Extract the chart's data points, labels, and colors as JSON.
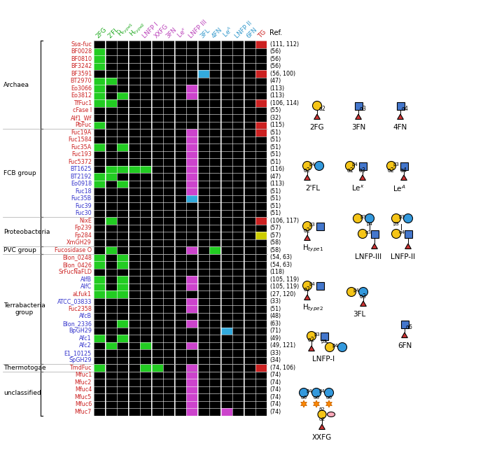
{
  "col_display": [
    "2FG",
    "2'FL",
    "H$_{type1}$",
    "H$_{type2}$",
    "LNFP I",
    "XXFG",
    "3FN",
    "Le$^x$",
    "LNFP III",
    "3FL",
    "4FN",
    "Le$^A$",
    "LNFP II",
    "6FN",
    "TG"
  ],
  "col_text_colors": [
    "#22aa22",
    "#22aa22",
    "#22aa22",
    "#22aa22",
    "#bb44bb",
    "#bb44bb",
    "#bb44bb",
    "#bb44bb",
    "#bb44bb",
    "#3399cc",
    "#3399cc",
    "#3399cc",
    "#3399cc",
    "#3399cc",
    "#cc2222"
  ],
  "row_labels": [
    "Ssα-fuc",
    "BF0028",
    "BF0810",
    "BF3242",
    "BF3591",
    "BT2970",
    "Eo3066",
    "Eo3812",
    "TfFuc1",
    "cFase I",
    "Alf1_Wf",
    "PbFuc",
    "Fuc19A",
    "Fuc1584",
    "Fuc35A",
    "Fuc193",
    "Fuc5372",
    "BT1625",
    "BT2192",
    "Eo0918",
    "Fuc18",
    "Fuc35B",
    "Fuc39",
    "Fuc30",
    "NixE",
    "Fp239",
    "Fp284",
    "XmGH29",
    "Fucosidase O",
    "Blon_0248",
    "Blon_0426",
    "SrFucNaFLD",
    "AlfB",
    "AlfC",
    "aLfuk1",
    "ATCC_03833",
    "Fuc2358",
    "AfcB",
    "Blon_2336",
    "BpGH29",
    "Afc1",
    "Afc2",
    "E1_10125",
    "SpGH29",
    "TmdFuc",
    "Mfuc1",
    "Mfuc2",
    "Mfuc4",
    "Mfuc5",
    "Mfuc6",
    "Mfuc7"
  ],
  "row_colors": [
    "#cc2222",
    "#cc2222",
    "#cc2222",
    "#cc2222",
    "#cc2222",
    "#cc2222",
    "#cc2222",
    "#cc2222",
    "#cc2222",
    "#cc2222",
    "#cc2222",
    "#cc2222",
    "#cc2222",
    "#cc2222",
    "#cc2222",
    "#cc2222",
    "#cc2222",
    "#3333cc",
    "#3333cc",
    "#3333cc",
    "#3333cc",
    "#3333cc",
    "#3333cc",
    "#3333cc",
    "#cc2222",
    "#cc2222",
    "#cc2222",
    "#cc2222",
    "#cc2222",
    "#cc2222",
    "#cc2222",
    "#cc2222",
    "#3333cc",
    "#3333cc",
    "#cc2222",
    "#3333cc",
    "#cc2222",
    "#3333cc",
    "#3333cc",
    "#3333cc",
    "#3333cc",
    "#3333cc",
    "#3333cc",
    "#3333cc",
    "#cc2222",
    "#cc2222",
    "#cc2222",
    "#cc2222",
    "#cc2222",
    "#cc2222",
    "#cc2222"
  ],
  "refs": [
    "(111, 112)",
    "(56)",
    "(56)",
    "(56)",
    "(56, 100)",
    "(47)",
    "(113)",
    "(113)",
    "(106, 114)",
    "(55)",
    "(32)",
    "(115)",
    "(51)",
    "(51)",
    "(51)",
    "(51)",
    "(51)",
    "(116)",
    "(47)",
    "(113)",
    "(51)",
    "(51)",
    "(51)",
    "(51)",
    "(106, 117)",
    "(57)",
    "(57)",
    "(58)",
    "(58)",
    "(54, 63)",
    "(54, 63)",
    "(118)",
    "(105, 119)",
    "(105, 119)",
    "(27, 120)",
    "(33)",
    "(51)",
    "(48)",
    "(63)",
    "(71)",
    "(49)",
    "(49, 121)",
    "(33)",
    "(34)",
    "(74, 106)",
    "(74)",
    "(74)",
    "(74)",
    "(74)",
    "(74)",
    "(74)"
  ],
  "color_grid": [
    "K K K K K K K K K K K K K K R",
    "G K K K K K K K K K K K K K K",
    "G K K K K K K K K K K K K K K",
    "G K K K K K K K K K K K K K K",
    "K K K K K K K K K B K K K K R",
    "G G K K K K K K K K K K K K K",
    "G K K K K K K K M K K K K K K",
    "G K G K K K K K M K K K K K K",
    "G G K K K K K K K K K K K K R",
    "K K K K K K K K K K K K K K K",
    "K K K K K K K K K K K K K K K",
    "G K K K K K K K K K K K K K R",
    "K K K K K K K K M K K K K K R",
    "K K K K K K K K M K K K K K K",
    "G K G K K K K K M K K K K K K",
    "K K K K K K K K M K K K K K K",
    "K K K K K K K K M K K K K K K",
    "K G G G G K K K M K K K K K K",
    "G G K K K K K K M K K K K K K",
    "G K G K K K K K M K K K K K K",
    "K K K K K K K K M K K K K K K",
    "K K K K K K K K B K K K K K K",
    "K K K K K K K K K K K K K K K",
    "K K K K K K K K K K K K K K K",
    "K G K K K K K K K K K K K K R",
    "K K K K K K K K K K K K K K K",
    "K K K K K K K K K K K K K K Y",
    "K K K K K K K K K K K K K K K",
    "K G K K K K K K M K G K K K K",
    "G K G K K K K K K K K K K K K",
    "G K G K K K K K K K K K K K K",
    "K K K K K K K K K K K K K K K",
    "G K G K K K K K M K K K K K K",
    "G K G K K K K K M K K K K K K",
    "G G G K K K K K K K K K K K K",
    "K K K K K K K K M K K K K K K",
    "K K K K K K K K M K K K K K K",
    "K K K K K K K K K K K K K K K",
    "K K G K K K K K M K K K K K K",
    "K K K K K K K K K K K B K K K",
    "G K G K K K K K K K K K K K K",
    "K G K K G K K K M K K K K K K",
    "K K K K K K K K K K K K K K K",
    "K K K K K K K K K K K K K K K",
    "G K K K G G K K M K K K K K R",
    "K K K K K K K K M K K K K K K",
    "K K K K K K K K M K K K K K K",
    "K K K K K K K K M K K K K K K",
    "K K K K K K K K M K K K K K K",
    "K K K K K K K K M K K K K K K",
    "K K K K K K K K M K K M K K K"
  ],
  "color_map": {
    "K": "#000000",
    "G": "#22cc22",
    "M": "#cc44cc",
    "B": "#33aadd",
    "Y": "#cccc00",
    "R": "#cc2222"
  },
  "groups": [
    {
      "name": "Archaea",
      "r1": 0,
      "r2": 11
    },
    {
      "name": "FCB group",
      "r1": 12,
      "r2": 23
    },
    {
      "name": "Proteobacteria",
      "r1": 24,
      "r2": 27
    },
    {
      "name": "PVC group",
      "r1": 28,
      "r2": 28
    },
    {
      "name": "Terrabacteria\ngroup",
      "r1": 29,
      "r2": 43
    },
    {
      "name": "Thermotogae",
      "r1": 44,
      "r2": 44
    },
    {
      "name": "unclassified",
      "r1": 45,
      "r2": 50
    }
  ]
}
